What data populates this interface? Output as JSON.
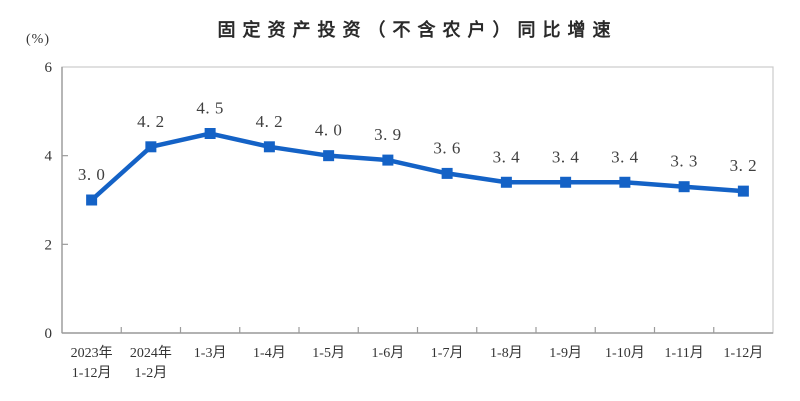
{
  "chart_data": {
    "type": "line",
    "title": "固定资产投资（不含农户）同比增速",
    "ylabel": "(%)",
    "xlabel": "",
    "categories": [
      [
        "2023年",
        "1-12月"
      ],
      [
        "2024年",
        "1-2月"
      ],
      [
        "1-3月"
      ],
      [
        "1-4月"
      ],
      [
        "1-5月"
      ],
      [
        "1-6月"
      ],
      [
        "1-7月"
      ],
      [
        "1-8月"
      ],
      [
        "1-9月"
      ],
      [
        "1-10月"
      ],
      [
        "1-11月"
      ],
      [
        "1-12月"
      ]
    ],
    "values": [
      3.0,
      4.2,
      4.5,
      4.2,
      4.0,
      3.9,
      3.6,
      3.4,
      3.4,
      3.4,
      3.3,
      3.2
    ],
    "point_labels": [
      "3. 0",
      "4. 2",
      "4. 5",
      "4. 2",
      "4. 0",
      "3. 9",
      "3. 6",
      "3. 4",
      "3. 4",
      "3. 4",
      "3. 3",
      "3. 2"
    ],
    "y_ticks": [
      0,
      2,
      4,
      6
    ],
    "ylim": [
      0,
      6
    ],
    "grid": false,
    "legend": "none",
    "marker": "square",
    "styles": {
      "line_color": "#1462c6",
      "marker_color": "#1462c6",
      "axis_color": "#9b9b9b",
      "border_color": "#cbcbcb",
      "point_label_color": "#3f3f3f",
      "tick_label_color": "#333333",
      "background": "#ffffff"
    }
  }
}
